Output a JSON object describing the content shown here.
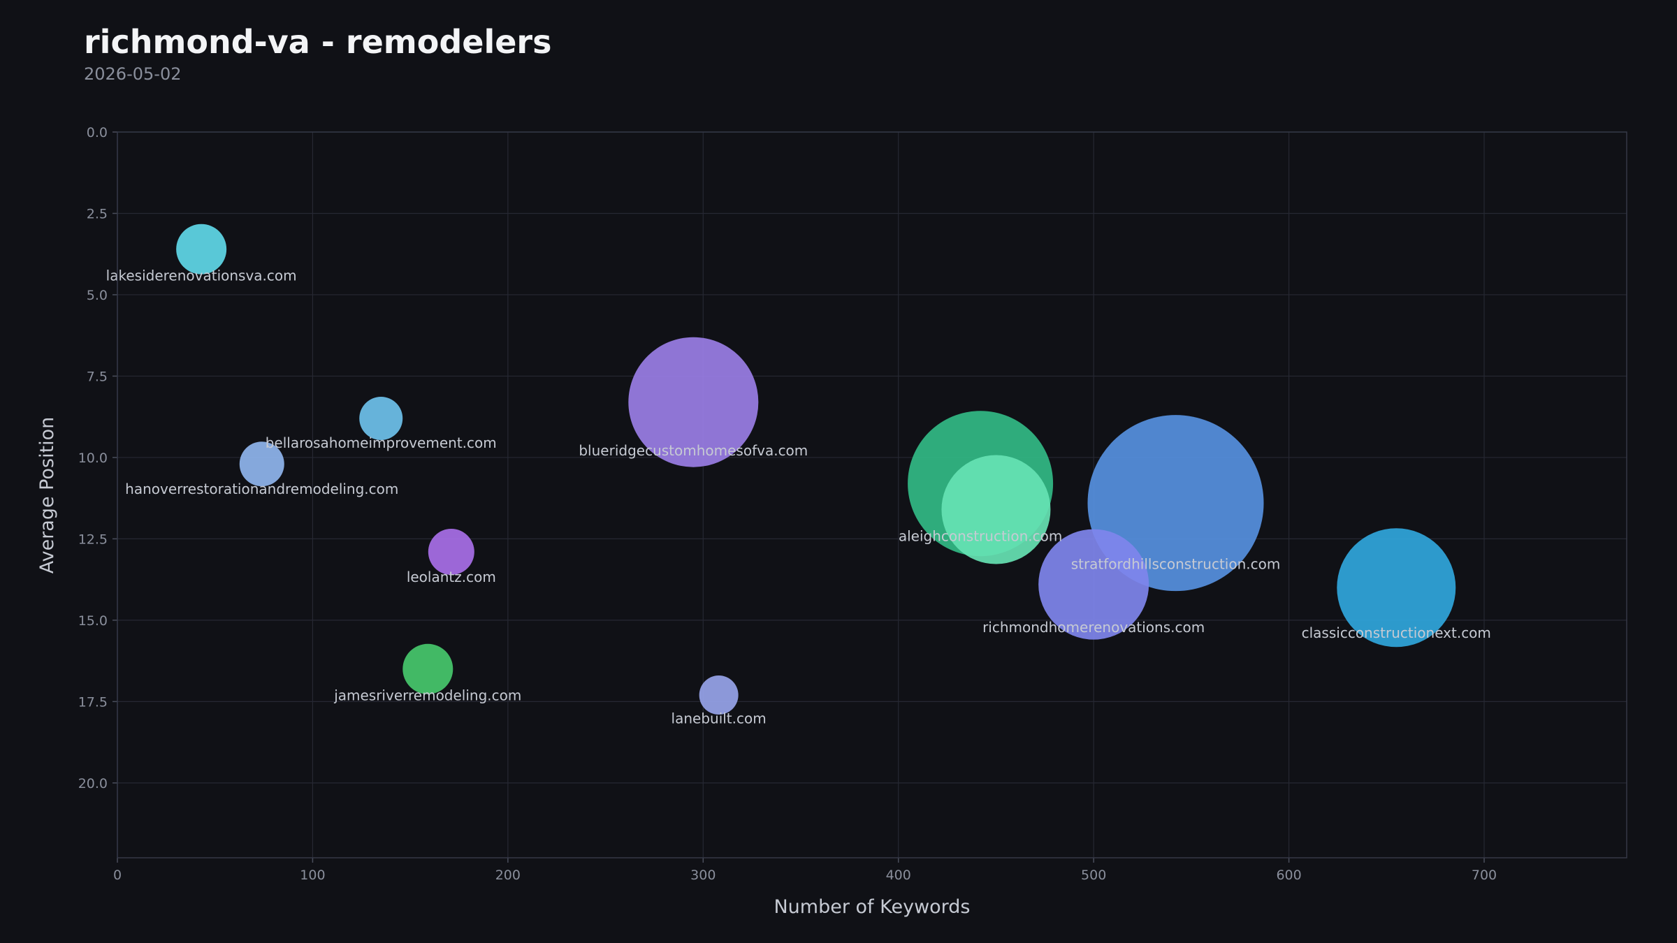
{
  "chart_data": {
    "type": "scatter",
    "title": "richmond-va - remodelers",
    "subtitle": "2026-05-02",
    "xlabel": "Number of Keywords",
    "ylabel": "Average Position",
    "xlim": [
      0,
      773
    ],
    "ylim": [
      22.3,
      0
    ],
    "y_inverted": true,
    "grid": true,
    "x_ticks": [
      "0",
      "100",
      "200",
      "300",
      "400",
      "500",
      "600",
      "700"
    ],
    "y_ticks": [
      "0.0",
      "2.5",
      "5.0",
      "7.5",
      "10.0",
      "12.5",
      "15.0",
      "17.5",
      "20.0"
    ],
    "points": [
      {
        "label": "lakesiderenovationsva.com",
        "x": 43,
        "y": 3.6,
        "size": 36,
        "color": "#5fd8e8"
      },
      {
        "label": "bellarosahomeimprovement.com",
        "x": 135,
        "y": 8.8,
        "size": 31,
        "color": "#6ec1ec"
      },
      {
        "label": "hanoverrestorationandremodeling.com",
        "x": 74,
        "y": 10.2,
        "size": 32,
        "color": "#8fb5ee"
      },
      {
        "label": "blueridgecustomhomesofva.com",
        "x": 295,
        "y": 8.3,
        "size": 93,
        "color": "#9a7ee6"
      },
      {
        "label": "leolantz.com",
        "x": 171,
        "y": 12.9,
        "size": 33,
        "color": "#a86fe8"
      },
      {
        "label": "jamesriverremodeling.com",
        "x": 159,
        "y": 16.5,
        "size": 36,
        "color": "#46c86c"
      },
      {
        "label": "lanebuilt.com",
        "x": 308,
        "y": 17.3,
        "size": 28,
        "color": "#97a4ea"
      },
      {
        "label": "aleighconstruction.com",
        "x": 442,
        "y": 10.8,
        "size": 104,
        "color": "#32ba86"
      },
      {
        "label": "",
        "x": 450,
        "y": 11.6,
        "size": 78,
        "color": "#66e2b3"
      },
      {
        "label": "stratfordhillsconstruction.com",
        "x": 542,
        "y": 11.4,
        "size": 126,
        "color": "#5690e0"
      },
      {
        "label": "richmondhomerenovations.com",
        "x": 500,
        "y": 13.9,
        "size": 79,
        "color": "#7f86ed"
      },
      {
        "label": "classicconstructionext.com",
        "x": 655,
        "y": 14.0,
        "size": 85,
        "color": "#30a6dc"
      }
    ]
  }
}
